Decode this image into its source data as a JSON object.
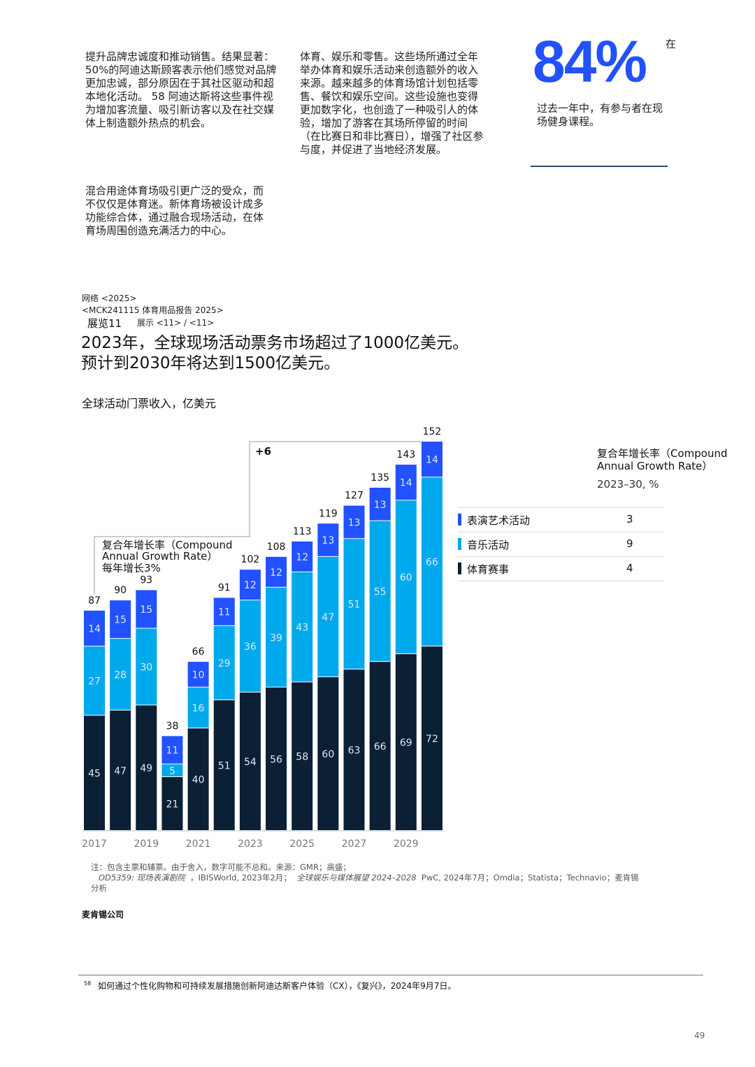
{
  "text_blocks": {
    "col1_p1": "提升品牌忠诚度和推动销售。结果显著：50%的阿迪达斯顾客表示他们感觉对品牌更加忠诚，部分原因在于其社区驱动和超本地化活动。 58 阿迪达斯将这些事件视为增加客流量、吸引新访客以及在社交媒体上制造额外热点的机会。",
    "col1_p2": "混合用途体育场吸引更广泛的受众，而不仅仅是体育迷。新体育场被设计成多功能综合体，通过融合现场活动，在体育场周围创造充满活力的中心。",
    "col2_p1": "体育、娱乐和零售。这些场所通过全年举办体育和娱乐活动来创造额外的收入来源。越来越多的体育场馆计划包括零售、餐饮和娱乐空间。这些设施也变得更加数字化，也创造了一种吸引人的体验，增加了游客在其场所停留的时间（在比赛日和非比赛日），增强了社区参与度，并促进了当地经济发展。"
  },
  "callout": {
    "value": "84%",
    "prefix": "在",
    "text": "过去一年中，有参与者在现场健身课程。"
  },
  "exhibit": {
    "source_line1": "网络 <2025>",
    "source_line2": "<MCK241115 体育用品报告 2025>",
    "exhibit_label": "展览11",
    "exhibit_ref": "展示 <11> / <11>",
    "headline_line1": "2023年，全球现场活动票务市场超过了1000亿美元。",
    "headline_line2": "预计到2030年将达到1500亿美元。"
  },
  "chart_data": {
    "type": "bar",
    "stacked": true,
    "title": "全球活动门票收入，亿美元",
    "categories": [
      "2017",
      "2018",
      "2019",
      "2020",
      "2021",
      "2022",
      "2023",
      "2024",
      "2025",
      "2026",
      "2027",
      "2028",
      "2029",
      "2030"
    ],
    "tick_labels": [
      "2017",
      "2019",
      "2021",
      "2023",
      "2025",
      "2027",
      "2029"
    ],
    "series": [
      {
        "name": "体育赛事",
        "color": "#0b1f35",
        "values": [
          45,
          47,
          49,
          21,
          40,
          51,
          54,
          56,
          58,
          60,
          63,
          66,
          69,
          72
        ]
      },
      {
        "name": "音乐活动",
        "color": "#00a9ec",
        "values": [
          27,
          28,
          30,
          5,
          16,
          29,
          36,
          39,
          43,
          47,
          51,
          55,
          60,
          66
        ]
      },
      {
        "name": "表演艺术活动",
        "color": "#2251ff",
        "values": [
          14,
          15,
          15,
          11,
          10,
          11,
          12,
          12,
          12,
          13,
          13,
          13,
          14,
          14
        ]
      }
    ],
    "totals": [
      87,
      90,
      93,
      38,
      66,
      91,
      102,
      108,
      113,
      119,
      127,
      135,
      143,
      152
    ],
    "ylim": [
      0,
      152
    ],
    "grid": false,
    "annotations": {
      "cagr_historic": "复合年增长率（Compound Annual Growth Rate）",
      "cagr_historic_value": "每年增长3%",
      "cagr_forecast": "+6"
    },
    "legend": {
      "placement": "right",
      "title": "复合年增长率（Compound Annual Growth Rate）",
      "subtitle": "2023–30, %",
      "rows": [
        {
          "label": "表演艺术活动",
          "value": "3",
          "color": "#2251ff"
        },
        {
          "label": "音乐活动",
          "value": "9",
          "color": "#00a9ec"
        },
        {
          "label": "体育赛事",
          "value": "4",
          "color": "#0b1f35"
        }
      ]
    }
  },
  "notes": {
    "line1": "注：包含主票和辅票。由于舍入，数字可能不总和。来源：GMR；高盛；",
    "src1_italic": "OD5359: 现场表演剧院",
    "src1": "，IBISWorld, 2023年2月；",
    "src2_italic": "全球娱乐与媒体展望 2024–2028",
    "src2": "PwC, 2024年7月；Omdia；Statista；Technavio；麦肯锡",
    "line3": "分析",
    "company": "麦肯锡公司"
  },
  "footnote": {
    "number": "58",
    "text": "如何通过个性化购物和可持续发展措施创新阿迪达斯客户体验（CX），《复兴》，2024年9月7日。"
  },
  "page_number": "49"
}
